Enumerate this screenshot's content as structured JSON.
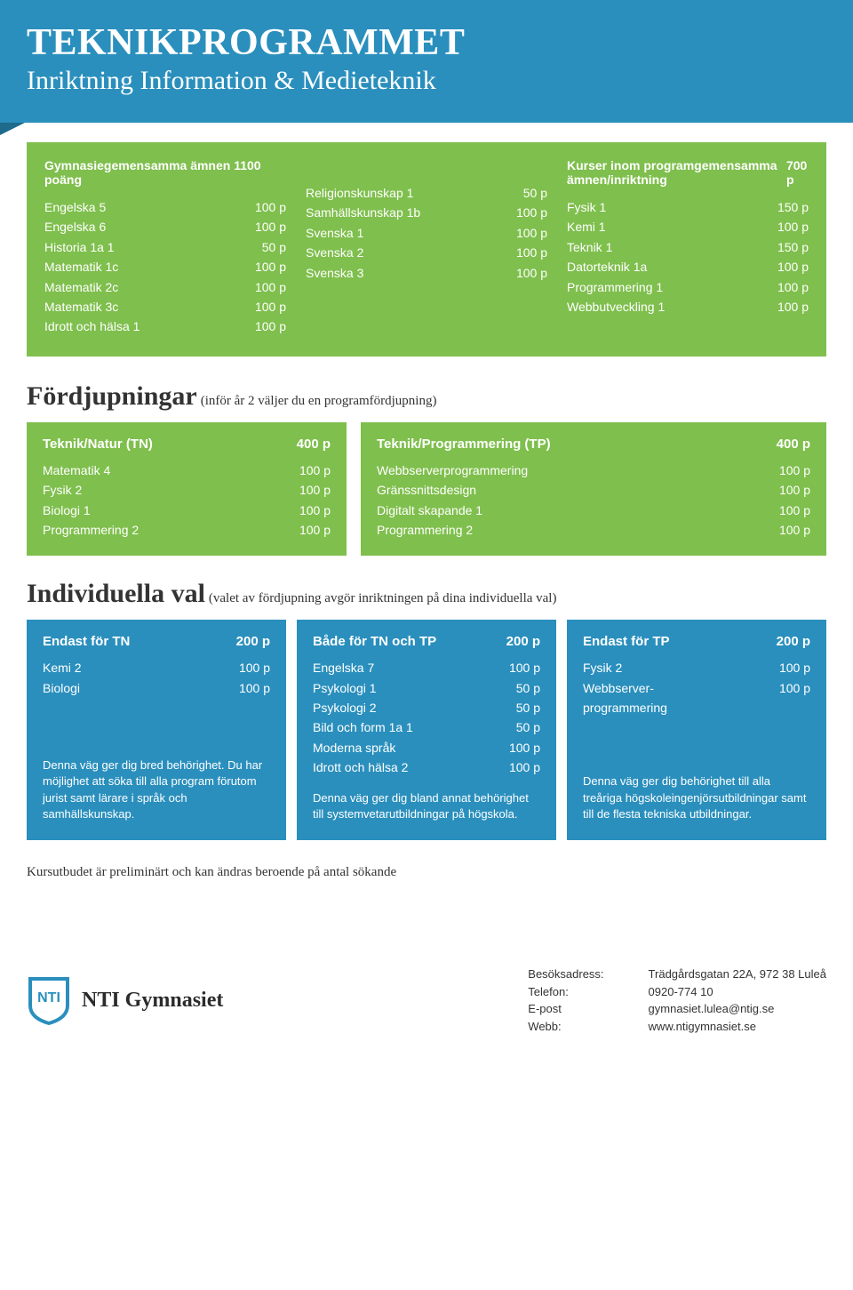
{
  "colors": {
    "header_bg": "#2a8fbd",
    "header_fold": "#1e6a8c",
    "green": "#7fbf4d",
    "blue": "#2a8fbd",
    "text": "#333333",
    "white": "#ffffff"
  },
  "header": {
    "title": "TEKNIKPROGRAMMET",
    "subtitle": "Inriktning Information & Medieteknik"
  },
  "gemensamma": {
    "col1_title": "Gymnasiegemensamma ämnen 1100 poäng",
    "col1": [
      {
        "label": "Engelska 5",
        "points": "100 p"
      },
      {
        "label": "Engelska 6",
        "points": "100 p"
      },
      {
        "label": "Historia 1a 1",
        "points": "50 p"
      },
      {
        "label": "Matematik 1c",
        "points": "100 p"
      },
      {
        "label": "Matematik 2c",
        "points": "100 p"
      },
      {
        "label": "Matematik 3c",
        "points": "100 p"
      },
      {
        "label": "Idrott och hälsa 1",
        "points": "100 p"
      }
    ],
    "col2": [
      {
        "label": "Religionskunskap 1",
        "points": "50 p"
      },
      {
        "label": "Samhällskunskap 1b",
        "points": "100 p"
      },
      {
        "label": "Svenska 1",
        "points": "100 p"
      },
      {
        "label": "Svenska 2",
        "points": "100 p"
      },
      {
        "label": "Svenska 3",
        "points": "100 p"
      }
    ],
    "col3_title": "Kurser inom programgemensamma ämnen/inriktning",
    "col3_title_points": "700 p",
    "col3": [
      {
        "label": "Fysik 1",
        "points": "150 p"
      },
      {
        "label": "Kemi 1",
        "points": "100 p"
      },
      {
        "label": "Teknik 1",
        "points": "150 p"
      },
      {
        "label": "Datorteknik 1a",
        "points": "100 p"
      },
      {
        "label": "Programmering 1",
        "points": "100 p"
      },
      {
        "label": "Webbutveckling 1",
        "points": "100 p"
      }
    ]
  },
  "fordjupningar": {
    "heading": "Fördjupningar",
    "sub": "(inför år 2 väljer du en programfördjupning)",
    "left": {
      "title": "Teknik/Natur (TN)",
      "points": "400 p",
      "rows": [
        {
          "label": "Matematik 4",
          "points": "100 p"
        },
        {
          "label": "Fysik 2",
          "points": "100 p"
        },
        {
          "label": "Biologi 1",
          "points": "100 p"
        },
        {
          "label": "Programmering 2",
          "points": "100 p"
        }
      ]
    },
    "right": {
      "title": "Teknik/Programmering (TP)",
      "points": "400 p",
      "rows": [
        {
          "label": "Webbserverprogrammering",
          "points": "100 p"
        },
        {
          "label": "Gränssnittsdesign",
          "points": "100 p"
        },
        {
          "label": "Digitalt skapande 1",
          "points": "100 p"
        },
        {
          "label": "Programmering 2",
          "points": "100 p"
        }
      ]
    }
  },
  "individuella": {
    "heading": "Individuella val",
    "sub": "(valet av fördjupning avgör inriktningen på dina individuella val)",
    "boxes": [
      {
        "title": "Endast för TN",
        "points": "200 p",
        "rows": [
          {
            "label": "Kemi 2",
            "points": "100 p"
          },
          {
            "label": "Biologi",
            "points": "100 p"
          }
        ],
        "desc": "Denna väg ger dig bred behörighet. Du har möjlighet att söka till alla program förutom jurist samt lärare i språk och samhällskunskap."
      },
      {
        "title": "Både för TN och TP",
        "points": "200 p",
        "rows": [
          {
            "label": "Engelska 7",
            "points": "100 p"
          },
          {
            "label": "Psykologi 1",
            "points": "50 p"
          },
          {
            "label": "Psykologi 2",
            "points": "50 p"
          },
          {
            "label": "Bild och form 1a 1",
            "points": "50 p"
          },
          {
            "label": "Moderna språk",
            "points": "100 p"
          },
          {
            "label": "Idrott och hälsa 2",
            "points": "100 p"
          }
        ],
        "desc": "Denna väg ger dig bland annat behörighet till systemvetarutbildningar på högskola."
      },
      {
        "title": "Endast för TP",
        "points": "200 p",
        "rows": [
          {
            "label": "Fysik 2",
            "points": "100 p"
          },
          {
            "label": "Webbserver-\nprogrammering",
            "points": "100 p"
          }
        ],
        "desc": "Denna väg ger dig behörighet till alla treåriga högskoleingenjörsutbildningar samt till de flesta tekniska utbildningar."
      }
    ]
  },
  "note": "Kursutbudet är preliminärt och kan ändras beroende på antal sökande",
  "footer": {
    "org": "NTI Gymnasiet",
    "labels": [
      "Besöksadress:",
      "Telefon:",
      "E-post",
      "Webb:"
    ],
    "values": [
      "Trädgårdsgatan 22A, 972 38 Luleå",
      "0920-774 10",
      "gymnasiet.lulea@ntig.se",
      "www.ntigymnasiet.se"
    ]
  }
}
